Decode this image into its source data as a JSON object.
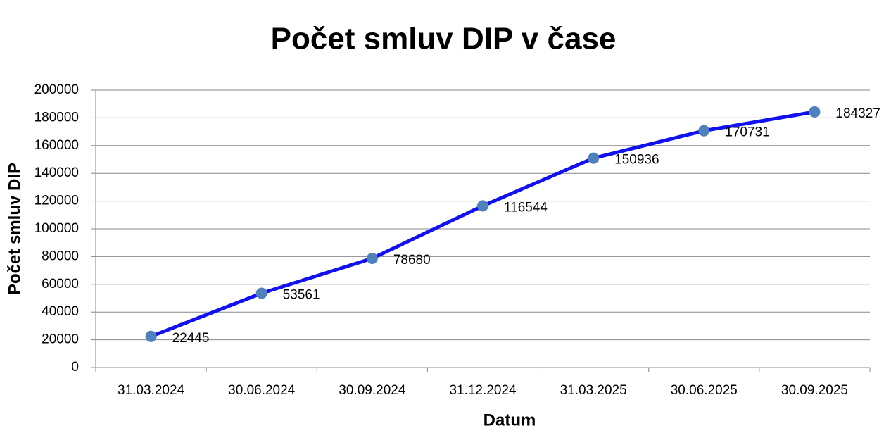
{
  "chart_data": {
    "type": "line",
    "title": "Počet smluv DIP v čase",
    "x_label": "Datum",
    "y_label": "Počet smluv DIP",
    "categories": [
      "31.03.2024",
      "30.06.2024",
      "30.09.2024",
      "31.12.2024",
      "31.03.2025",
      "30.06.2025",
      "30.09.2025"
    ],
    "series": [
      {
        "name": "Počet smluv DIP",
        "color": "#1010f0",
        "marker_color": "#4f81bd",
        "values": [
          22445,
          53561,
          78680,
          116544,
          150936,
          170731,
          184327
        ]
      }
    ],
    "ylim": [
      0,
      200000
    ],
    "yticks": [
      0,
      20000,
      40000,
      60000,
      80000,
      100000,
      120000,
      140000,
      160000,
      180000,
      200000
    ],
    "grid": true,
    "data_labels": true
  }
}
